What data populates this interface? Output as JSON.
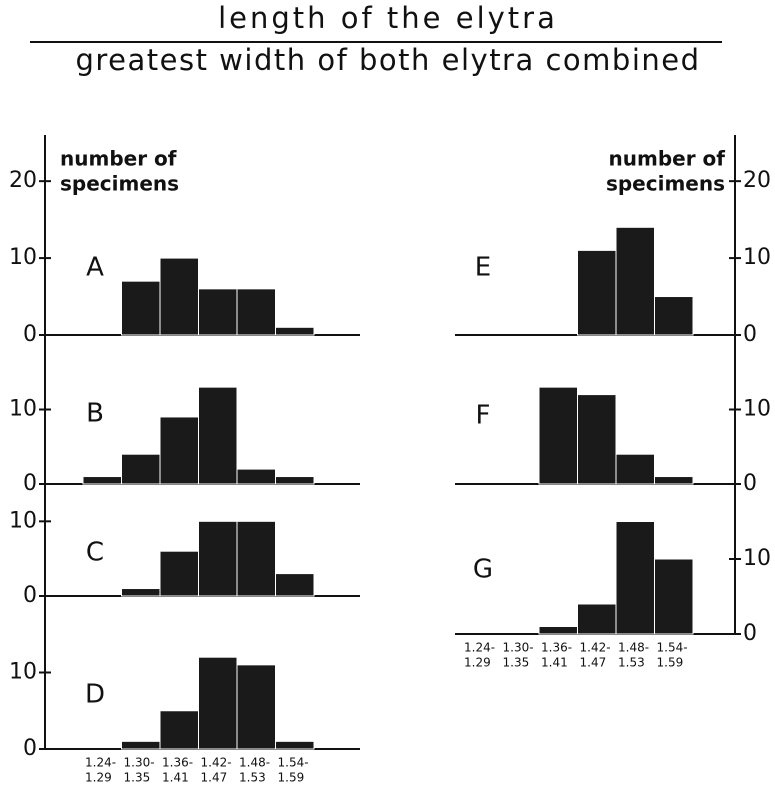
{
  "title": "length of the elytra",
  "subtitle": "greatest width of both elytra combined",
  "chart_data": [
    {
      "type": "bar",
      "label": "A",
      "ylabel": [
        "number of",
        "specimens"
      ],
      "values": [
        0,
        7,
        10,
        6,
        6,
        1
      ],
      "ylim": [
        0,
        26
      ],
      "yticks": [
        0,
        10,
        20
      ],
      "color": "#1a1a1a"
    },
    {
      "type": "bar",
      "label": "B",
      "values": [
        1,
        4,
        9,
        13,
        2,
        1
      ],
      "ylim": [
        0,
        20
      ],
      "yticks": [
        0,
        10
      ],
      "color": "#1a1a1a"
    },
    {
      "type": "bar",
      "label": "C",
      "values": [
        0,
        1,
        6,
        10,
        10,
        3
      ],
      "ylim": [
        0,
        15
      ],
      "yticks": [
        0,
        10
      ],
      "color": "#1a1a1a"
    },
    {
      "type": "bar",
      "label": "D",
      "categories": [
        [
          "1.24-",
          "1.29"
        ],
        [
          "1.30-",
          "1.35"
        ],
        [
          "1.36-",
          "1.41"
        ],
        [
          "1.42-",
          "1.47"
        ],
        [
          "1.48-",
          "1.53"
        ],
        [
          "1.54-",
          "1.59"
        ]
      ],
      "values": [
        0,
        1,
        5,
        12,
        11,
        1
      ],
      "ylim": [
        0,
        20
      ],
      "yticks": [
        0,
        10
      ],
      "color": "#1a1a1a"
    },
    {
      "type": "bar",
      "label": "E",
      "ylabel": [
        "number of",
        "specimens"
      ],
      "values": [
        0,
        0,
        0,
        11,
        14,
        5
      ],
      "ylim": [
        0,
        26
      ],
      "yticks": [
        0,
        10,
        20
      ],
      "color": "#1a1a1a"
    },
    {
      "type": "bar",
      "label": "F",
      "values": [
        0,
        0,
        13,
        12,
        4,
        1
      ],
      "ylim": [
        0,
        20
      ],
      "yticks": [
        0,
        10
      ],
      "color": "#1a1a1a"
    },
    {
      "type": "bar",
      "label": "G",
      "categories": [
        [
          "1.24-",
          "1.29"
        ],
        [
          "1.30-",
          "1.35"
        ],
        [
          "1.36-",
          "1.41"
        ],
        [
          "1.42-",
          "1.47"
        ],
        [
          "1.48-",
          "1.53"
        ],
        [
          "1.54-",
          "1.59"
        ]
      ],
      "values": [
        0,
        0,
        1,
        4,
        15,
        10
      ],
      "ylim": [
        0,
        20
      ],
      "yticks": [
        0,
        10
      ],
      "color": "#1a1a1a"
    }
  ]
}
